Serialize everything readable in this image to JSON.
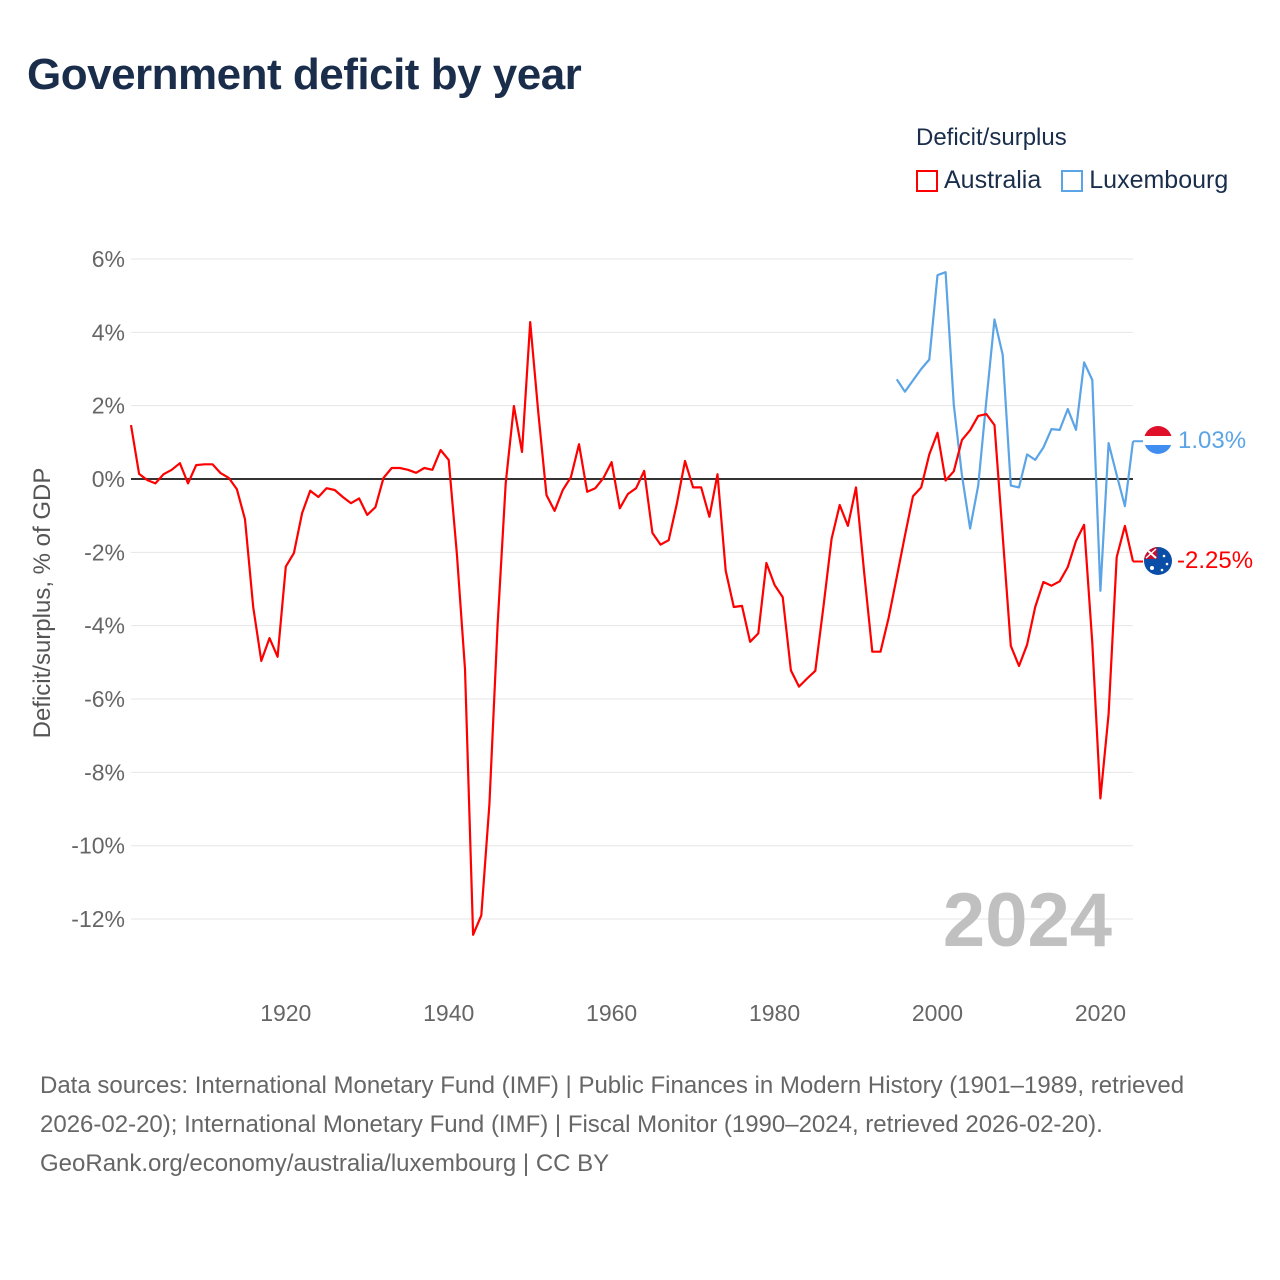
{
  "chart_data": {
    "type": "line",
    "title": "Government deficit by year",
    "legend_title": "Deficit/surplus",
    "legend_position": "top-right",
    "ylabel": "Deficit/surplus, % of GDP",
    "xlabel": "",
    "xlim": [
      1901,
      2024
    ],
    "ylim": [
      -13.5,
      6.5
    ],
    "grid": true,
    "x_ticks": [
      1920,
      1940,
      1960,
      1980,
      2000,
      2020
    ],
    "x_tick_labels": [
      "1920",
      "1940",
      "1960",
      "1980",
      "2000",
      "2020"
    ],
    "y_ticks": [
      6,
      4,
      2,
      0,
      -2,
      -4,
      -6,
      -8,
      -10,
      -12
    ],
    "y_tick_labels": [
      "6%",
      "4%",
      "2%",
      "0%",
      "-2%",
      "-4%",
      "-6%",
      "-8%",
      "-10%",
      "-12%"
    ],
    "year_watermark": "2024",
    "series": [
      {
        "name": "Australia",
        "color": "#ff0000",
        "flag": "australia-flag",
        "end_label": "-2.25%",
        "start_year": 1901,
        "values": [
          1.47,
          0.14,
          -0.03,
          -0.12,
          0.13,
          0.25,
          0.43,
          -0.12,
          0.38,
          0.4,
          0.4,
          0.16,
          0.03,
          -0.28,
          -1.1,
          -3.49,
          -4.96,
          -4.34,
          -4.85,
          -2.39,
          -2.02,
          -0.93,
          -0.32,
          -0.49,
          -0.25,
          -0.3,
          -0.49,
          -0.66,
          -0.53,
          -0.98,
          -0.77,
          0.03,
          0.3,
          0.3,
          0.25,
          0.17,
          0.3,
          0.25,
          0.79,
          0.52,
          -2.05,
          -5.18,
          -12.43,
          -11.9,
          -8.87,
          -3.98,
          -0.12,
          1.99,
          0.74,
          4.28,
          1.81,
          -0.44,
          -0.87,
          -0.3,
          0.05,
          0.95,
          -0.35,
          -0.25,
          0.03,
          0.46,
          -0.8,
          -0.41,
          -0.25,
          0.22,
          -1.47,
          -1.79,
          -1.67,
          -0.68,
          0.49,
          -0.23,
          -0.23,
          -1.03,
          0.13,
          -2.5,
          -3.49,
          -3.46,
          -4.44,
          -4.21,
          -2.29,
          -2.89,
          -3.22,
          -5.22,
          -5.66,
          -5.44,
          -5.23,
          -3.49,
          -1.63,
          -0.71,
          -1.28,
          -0.23,
          -2.56,
          -4.71,
          -4.71,
          -3.79,
          -2.67,
          -1.55,
          -0.47,
          -0.23,
          0.67,
          1.26,
          -0.04,
          0.21,
          1.06,
          1.33,
          1.72,
          1.77,
          1.47,
          -1.55,
          -4.55,
          -5.1,
          -4.52,
          -3.49,
          -2.81,
          -2.91,
          -2.79,
          -2.4,
          -1.69,
          -1.25,
          -4.47,
          -8.71,
          -6.41,
          -2.13,
          -1.28,
          -2.25
        ]
      },
      {
        "name": "Luxembourg",
        "color": "#5ba4e6",
        "flag": "luxembourg-flag",
        "end_label": "1.03%",
        "start_year": 1995,
        "values": [
          2.72,
          2.38,
          2.69,
          3.0,
          3.26,
          5.56,
          5.64,
          2.02,
          0.11,
          -1.35,
          -0.18,
          2.15,
          4.35,
          3.39,
          -0.18,
          -0.23,
          0.67,
          0.52,
          0.86,
          1.36,
          1.34,
          1.91,
          1.34,
          3.18,
          2.7,
          -3.05,
          0.98,
          0.11,
          -0.74,
          1.03
        ]
      }
    ]
  },
  "footer": {
    "sources": "Data sources: International Monetary Fund (IMF) | Public Finances in Modern History (1901–1989, retrieved 2026-02-20); International Monetary Fund (IMF) | Fiscal Monitor (1990–2024, retrieved 2026-02-20).",
    "link": "GeoRank.org/economy/australia/luxembourg",
    "license": " | CC BY"
  }
}
